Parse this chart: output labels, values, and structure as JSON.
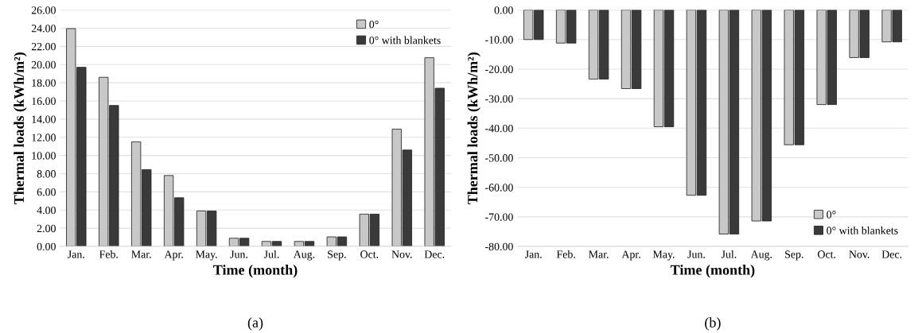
{
  "chart_data": [
    {
      "type": "bar",
      "xlabel": "Time (month)",
      "ylabel": "Thermal loads (kWh/m²)",
      "annotations": [
        "(a)"
      ],
      "categories": [
        "Jan.",
        "Feb.",
        "Mar.",
        "Apr.",
        "May.",
        "Jun.",
        "Jul.",
        "Aug.",
        "Sep.",
        "Oct.",
        "Nov.",
        "Dec."
      ],
      "series": [
        {
          "name": "0°",
          "color": "#c8c8c8",
          "values": [
            23.95,
            18.6,
            11.5,
            7.8,
            3.9,
            0.9,
            0.55,
            0.55,
            1.05,
            3.55,
            12.9,
            20.75
          ]
        },
        {
          "name": "0° with blankets",
          "color": "#3a3a3a",
          "values": [
            19.7,
            15.5,
            8.45,
            5.35,
            3.9,
            0.9,
            0.55,
            0.55,
            1.05,
            3.55,
            10.6,
            17.4
          ]
        }
      ],
      "ylim": [
        0,
        26
      ],
      "yticks": [
        {
          "value": 0,
          "label": "0.00"
        },
        {
          "value": 2,
          "label": "2.00"
        },
        {
          "value": 4,
          "label": "4.00"
        },
        {
          "value": 6,
          "label": "6.00"
        },
        {
          "value": 8,
          "label": "8.00"
        },
        {
          "value": 10,
          "label": "10.00"
        },
        {
          "value": 12,
          "label": "12.00"
        },
        {
          "value": 14,
          "label": "14.00"
        },
        {
          "value": 16,
          "label": "16.00"
        },
        {
          "value": 18,
          "label": "18.00"
        },
        {
          "value": 20,
          "label": "20.00"
        },
        {
          "value": 22,
          "label": "22.00"
        },
        {
          "value": 24,
          "label": "24.00"
        },
        {
          "value": 26,
          "label": "26.00"
        }
      ],
      "grid": "y",
      "legend": "top right"
    },
    {
      "type": "bar",
      "xlabel": "Time (month)",
      "ylabel": "Thermal loads (kWh/m²)",
      "annotations": [
        "(b)"
      ],
      "categories": [
        "Jan.",
        "Feb.",
        "Mar.",
        "Apr.",
        "May.",
        "Jun.",
        "Jul.",
        "Aug.",
        "Sep.",
        "Oct.",
        "Nov.",
        "Dec."
      ],
      "series": [
        {
          "name": "0°",
          "color": "#c8c8c8",
          "values": [
            -10.0,
            -11.2,
            -23.4,
            -26.6,
            -39.5,
            -62.7,
            -75.8,
            -71.4,
            -45.6,
            -32.0,
            -16.1,
            -10.8
          ]
        },
        {
          "name": "0° with blankets",
          "color": "#3a3a3a",
          "values": [
            -10.0,
            -11.2,
            -23.4,
            -26.6,
            -39.5,
            -62.7,
            -75.8,
            -71.4,
            -45.6,
            -32.0,
            -16.1,
            -10.8
          ]
        }
      ],
      "ylim": [
        -80,
        0
      ],
      "yticks": [
        {
          "value": -80,
          "label": "-80.00"
        },
        {
          "value": -70,
          "label": "-70.00"
        },
        {
          "value": -60,
          "label": "-60.00"
        },
        {
          "value": -50,
          "label": "-50.00"
        },
        {
          "value": -40,
          "label": "-40.00"
        },
        {
          "value": -30,
          "label": "-30.00"
        },
        {
          "value": -20,
          "label": "-20.00"
        },
        {
          "value": -10,
          "label": "-10.00"
        },
        {
          "value": 0,
          "label": "0.00"
        }
      ],
      "grid": "y",
      "legend": "bottom right"
    }
  ]
}
